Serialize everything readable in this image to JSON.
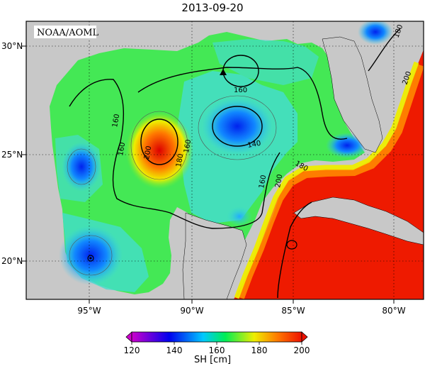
{
  "title": "2013-09-20",
  "credit": "NOAA/AOML",
  "lat_labels": [
    "30°N",
    "25°N",
    "20°N"
  ],
  "lon_labels": [
    "95°W",
    "90°W",
    "85°W",
    "80°W"
  ],
  "contour_labels": [
    {
      "id": "c1",
      "text": "160"
    },
    {
      "id": "c2",
      "text": "160"
    },
    {
      "id": "c3",
      "text": "200"
    },
    {
      "id": "c4",
      "text": "180"
    },
    {
      "id": "c5",
      "text": "160"
    },
    {
      "id": "c6",
      "text": "140"
    },
    {
      "id": "c7",
      "text": "160"
    },
    {
      "id": "c8",
      "text": "180"
    },
    {
      "id": "c9",
      "text": "200"
    },
    {
      "id": "c10",
      "text": "180"
    },
    {
      "id": "c11",
      "text": "200"
    }
  ],
  "colorbar": {
    "title": "SH [cm]",
    "ticks": [
      "120",
      "140",
      "160",
      "180",
      "200"
    ],
    "min": 120,
    "max": 200,
    "colors": [
      "#cc00cc",
      "#0000ee",
      "#00c8ff",
      "#00ee55",
      "#eeee00",
      "#ff7700",
      "#ee1100"
    ]
  },
  "colors": {
    "land": "#c8c8c8",
    "frame": "#000000"
  },
  "marker": "triangle-marker"
}
